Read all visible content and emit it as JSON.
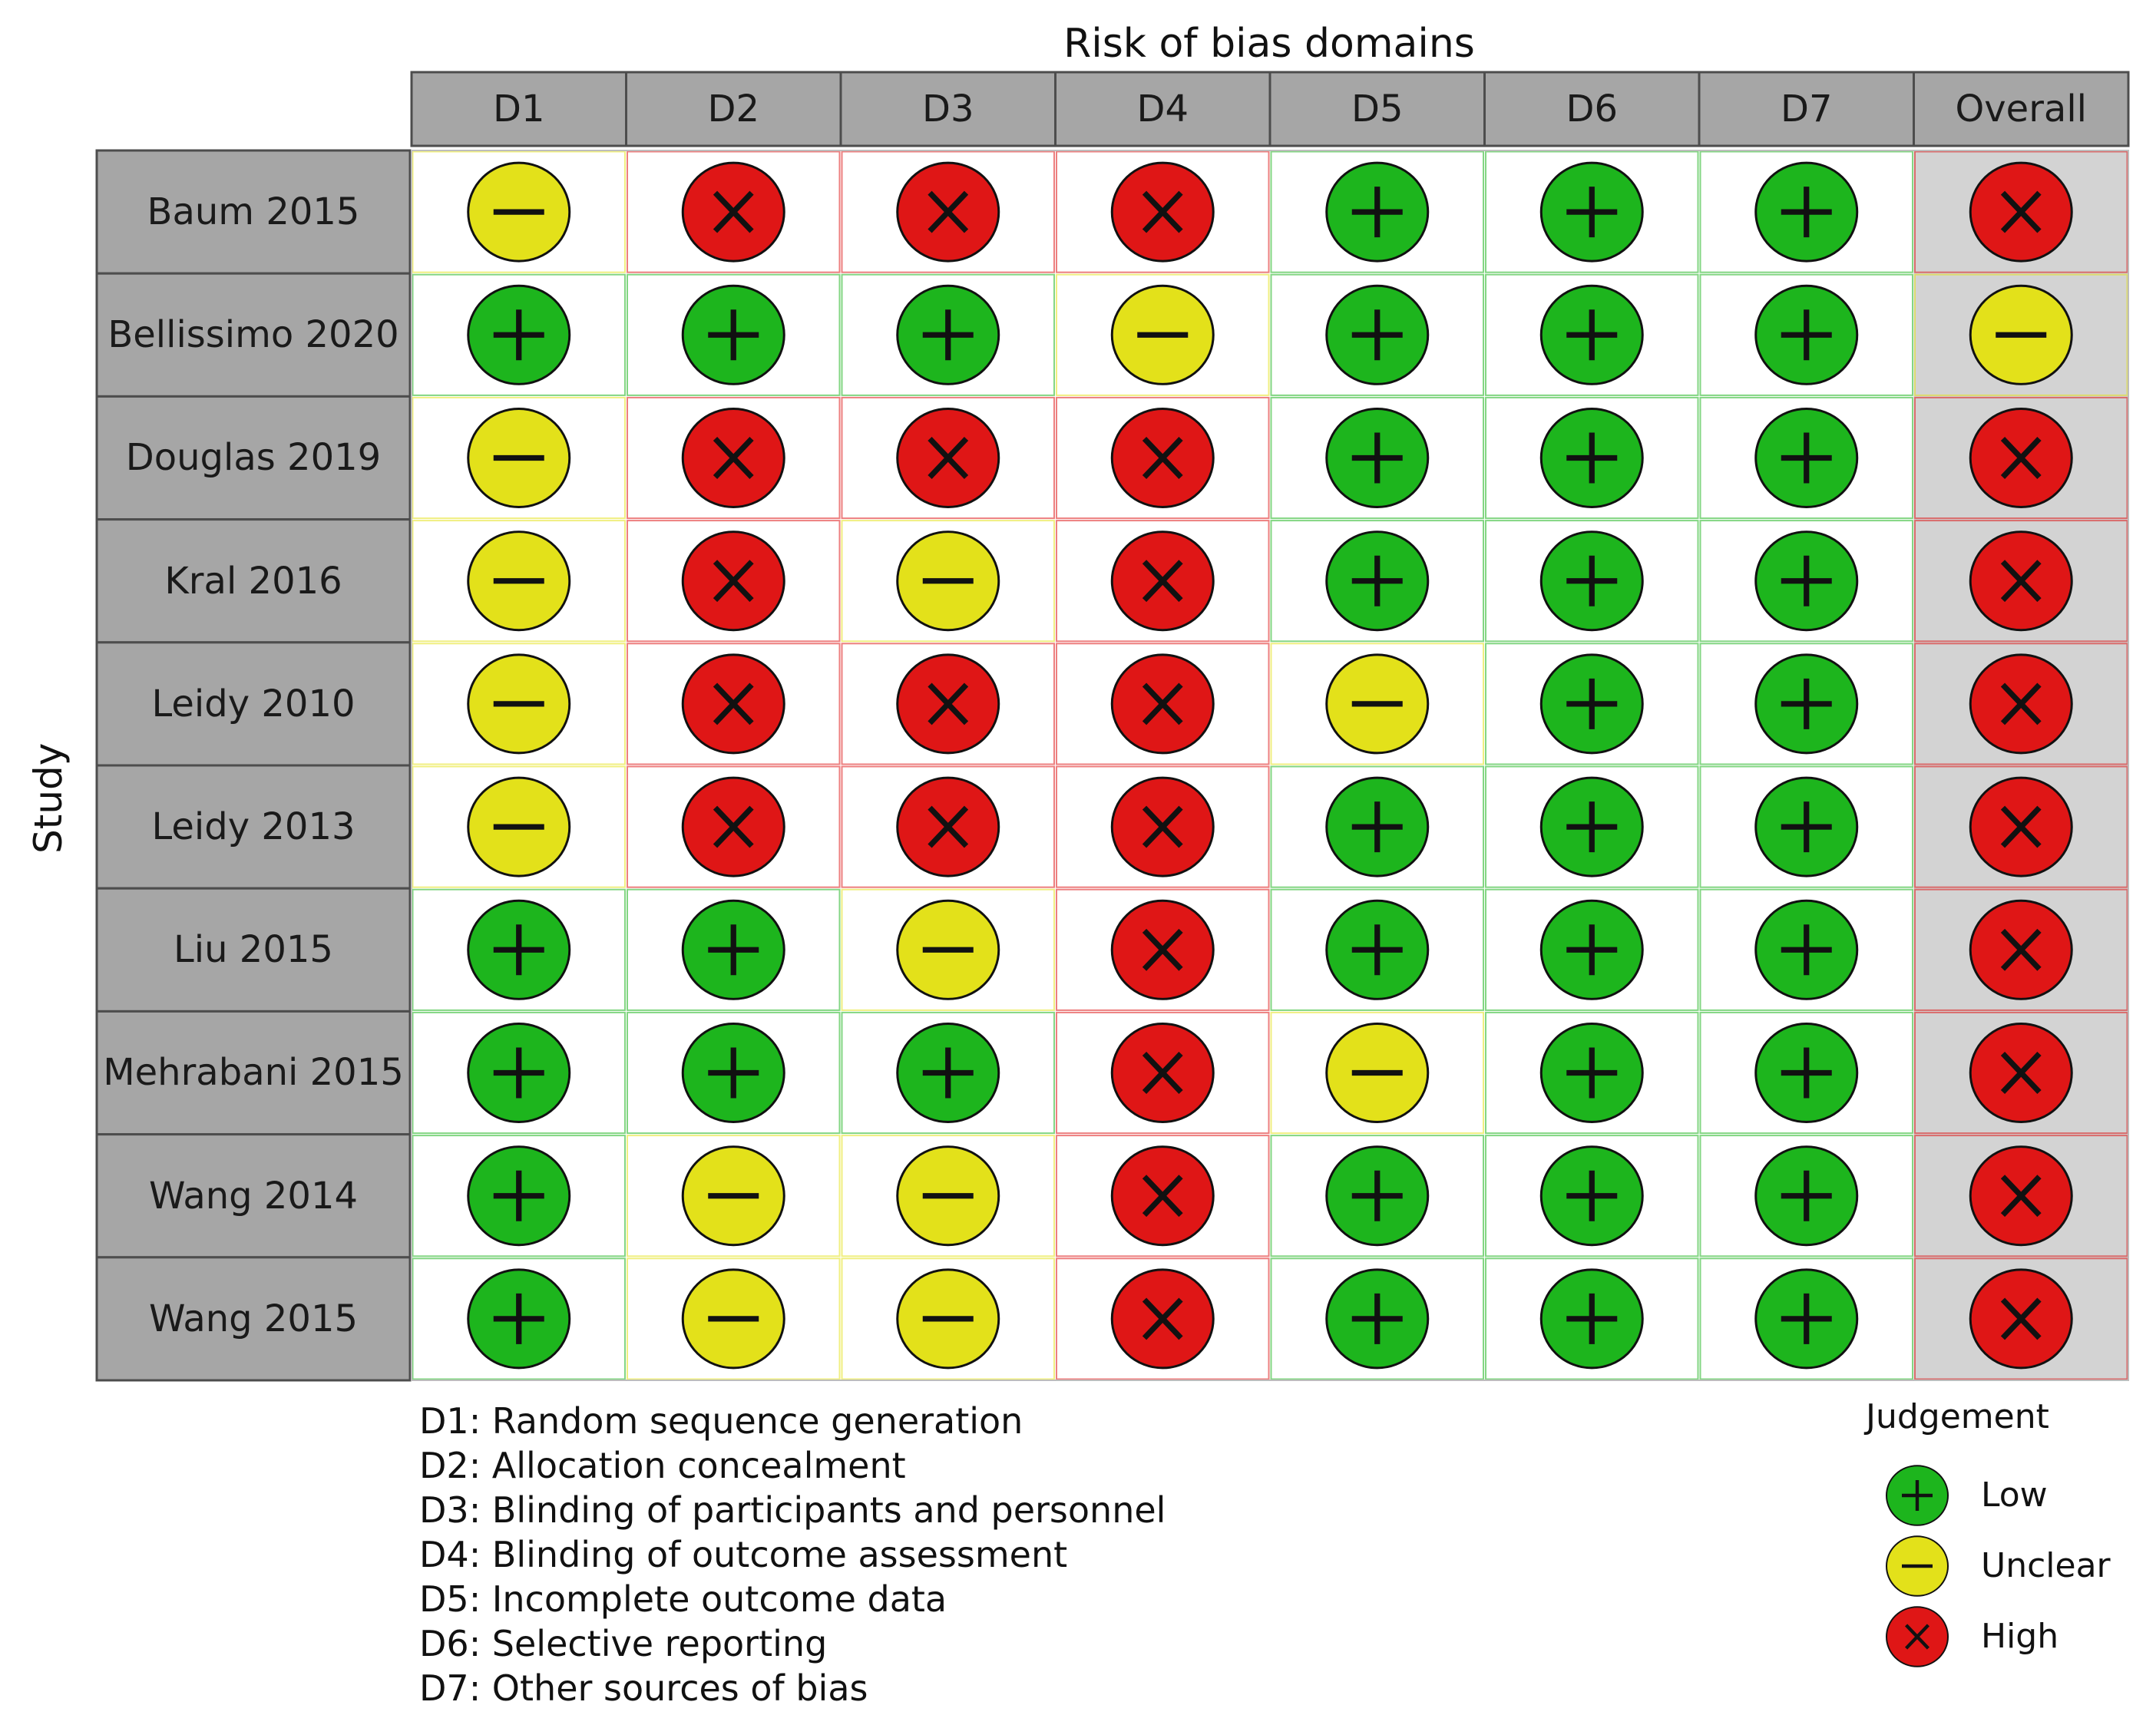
{
  "chart_data": {
    "type": "table",
    "title": "Risk of bias domains",
    "ylabel": "Study",
    "domains": [
      "D1",
      "D2",
      "D3",
      "D4",
      "D5",
      "D6",
      "D7",
      "Overall"
    ],
    "studies": [
      {
        "name": "Baum 2015",
        "judgements": [
          "unclear",
          "high",
          "high",
          "high",
          "low",
          "low",
          "low",
          "high"
        ]
      },
      {
        "name": "Bellissimo 2020",
        "judgements": [
          "low",
          "low",
          "low",
          "unclear",
          "low",
          "low",
          "low",
          "unclear"
        ]
      },
      {
        "name": "Douglas 2019",
        "judgements": [
          "unclear",
          "high",
          "high",
          "high",
          "low",
          "low",
          "low",
          "high"
        ]
      },
      {
        "name": "Kral 2016",
        "judgements": [
          "unclear",
          "high",
          "unclear",
          "high",
          "low",
          "low",
          "low",
          "high"
        ]
      },
      {
        "name": "Leidy 2010",
        "judgements": [
          "unclear",
          "high",
          "high",
          "high",
          "unclear",
          "low",
          "low",
          "high"
        ]
      },
      {
        "name": "Leidy 2013",
        "judgements": [
          "unclear",
          "high",
          "high",
          "high",
          "low",
          "low",
          "low",
          "high"
        ]
      },
      {
        "name": "Liu 2015",
        "judgements": [
          "low",
          "low",
          "unclear",
          "high",
          "low",
          "low",
          "low",
          "high"
        ]
      },
      {
        "name": "Mehrabani 2015",
        "judgements": [
          "low",
          "low",
          "low",
          "high",
          "unclear",
          "low",
          "low",
          "high"
        ]
      },
      {
        "name": "Wang 2014",
        "judgements": [
          "low",
          "unclear",
          "unclear",
          "high",
          "low",
          "low",
          "low",
          "high"
        ]
      },
      {
        "name": "Wang 2015",
        "judgements": [
          "low",
          "unclear",
          "unclear",
          "high",
          "low",
          "low",
          "low",
          "high"
        ]
      }
    ],
    "domain_descriptions": [
      "D1: Random sequence generation",
      "D2: Allocation concealment",
      "D3: Blinding of participants and personnel",
      "D4: Blinding of outcome assessment",
      "D5: Incomplete outcome data",
      "D6: Selective reporting",
      "D7: Other sources of bias"
    ],
    "legend": {
      "title": "Judgement",
      "items": [
        {
          "key": "low",
          "label": "Low"
        },
        {
          "key": "unclear",
          "label": "Unclear"
        },
        {
          "key": "high",
          "label": "High"
        }
      ]
    },
    "colors": {
      "low": "#1db51d",
      "unclear": "#e3e11a",
      "high": "#df1616",
      "header_fill": "#a6a6a6",
      "overall_fill": "#d3d3d3"
    },
    "symbols": {
      "low": "plus-icon",
      "unclear": "minus-icon",
      "high": "cross-icon"
    }
  }
}
